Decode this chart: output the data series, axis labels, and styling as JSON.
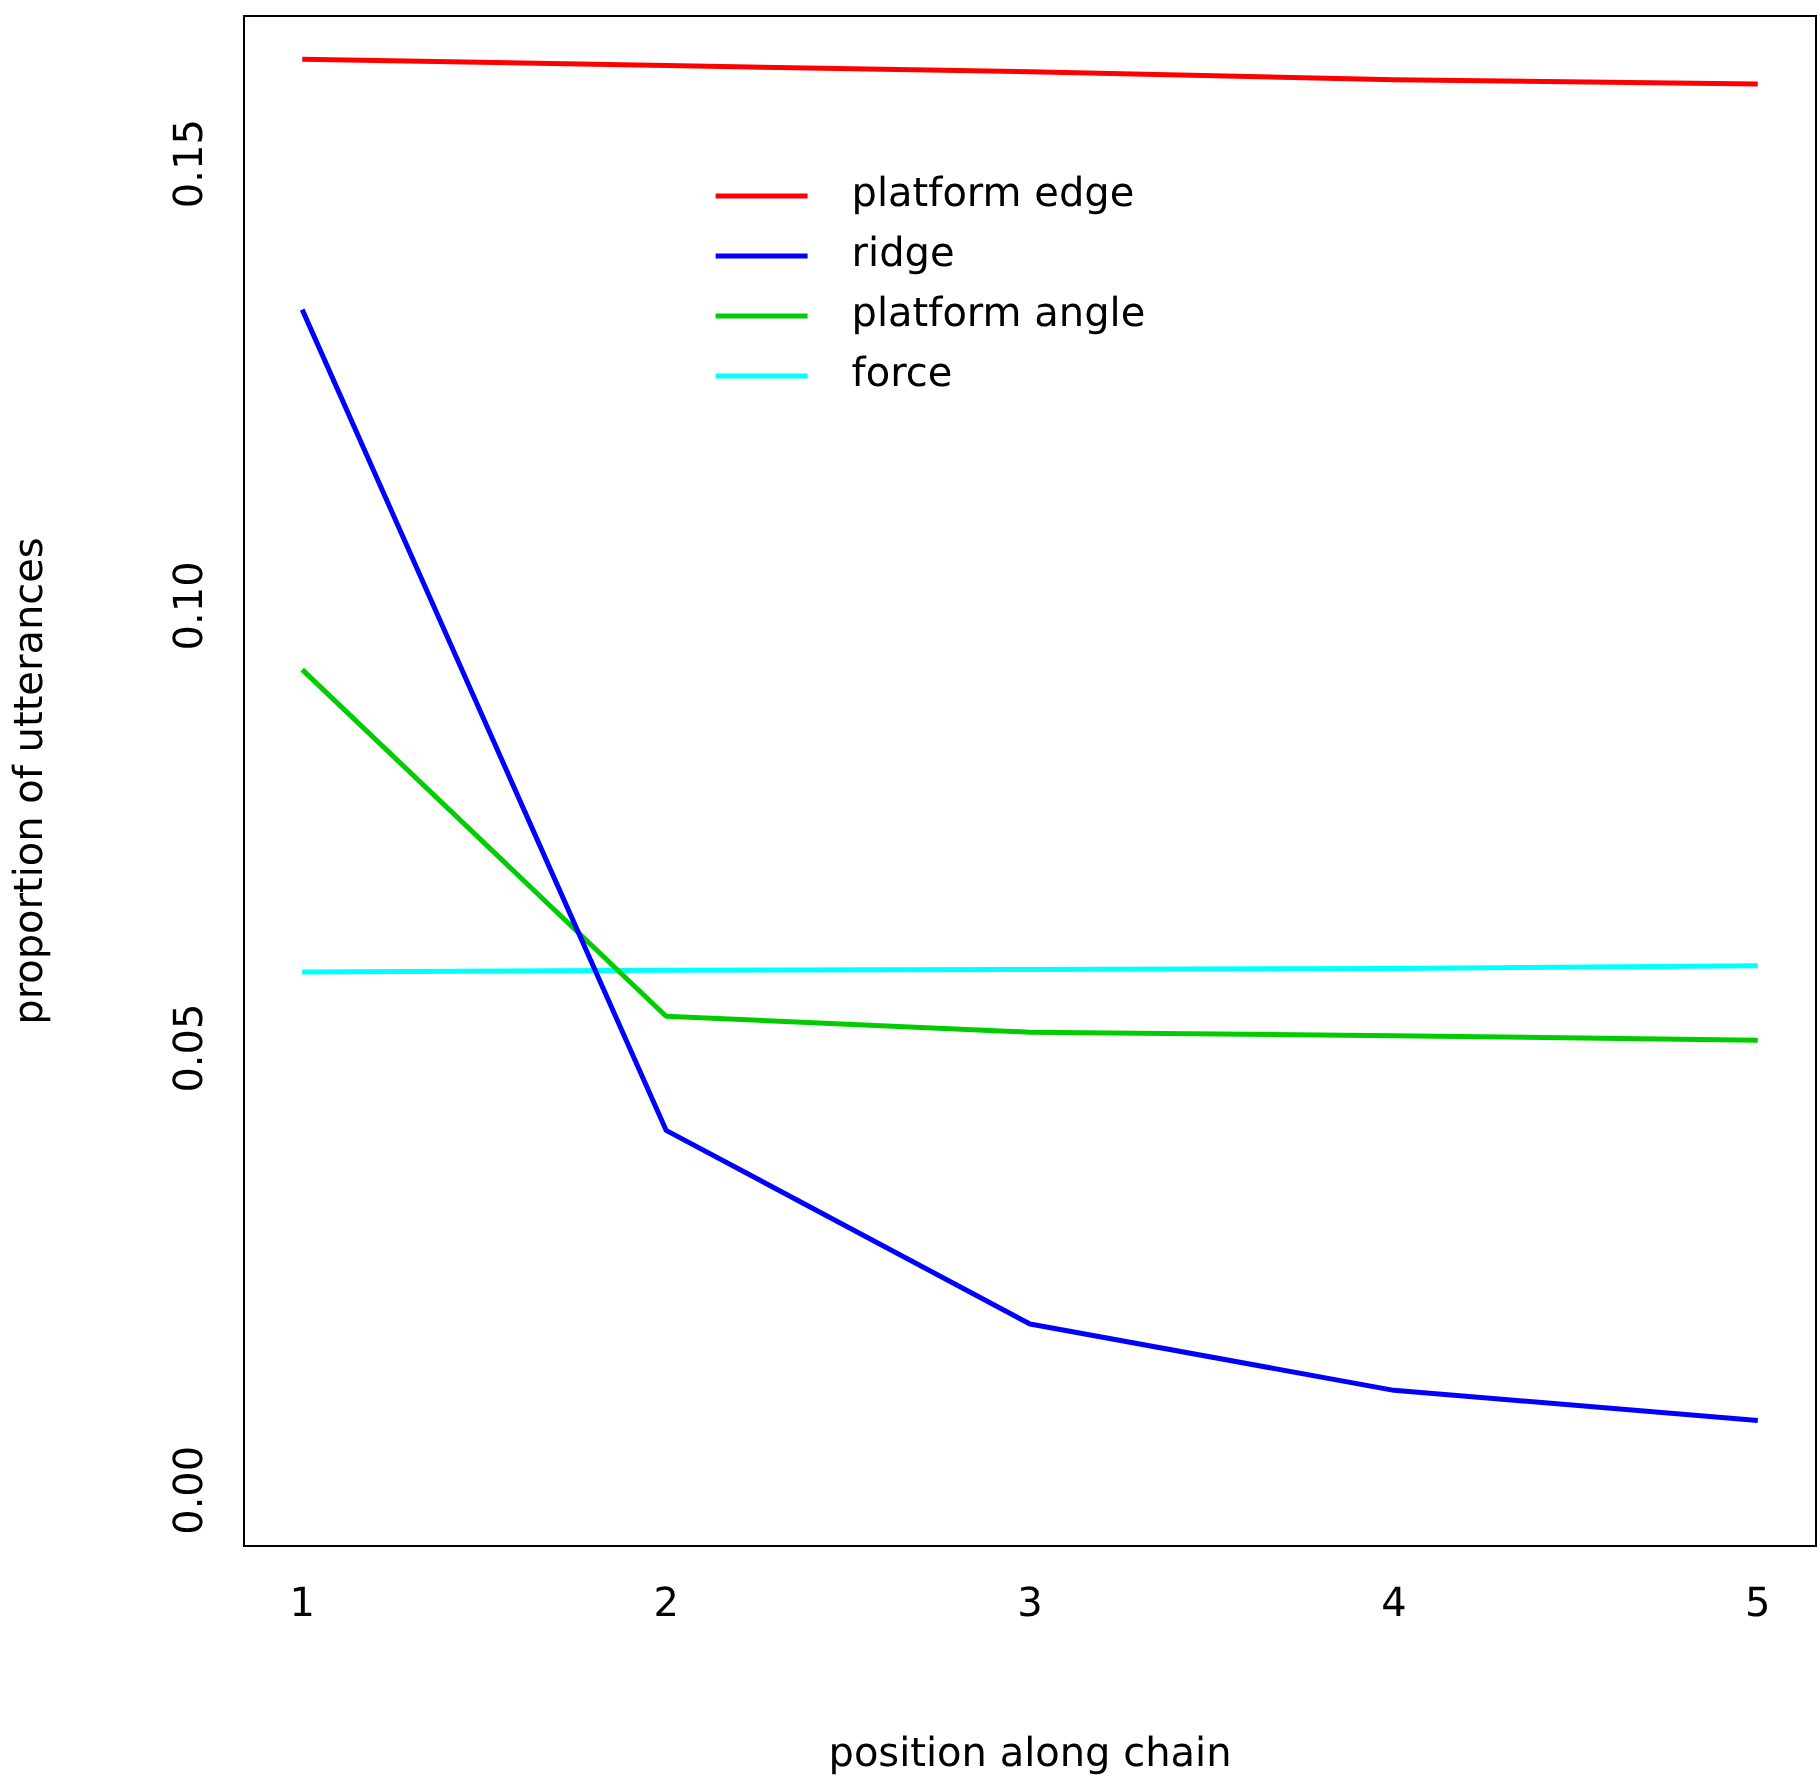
{
  "chart_data": {
    "type": "line",
    "xlabel": "position along chain",
    "ylabel": "proportion of utterances",
    "x": [
      1,
      2,
      3,
      4,
      5
    ],
    "xlim": [
      0.84,
      5.16
    ],
    "xticks": [
      1,
      2,
      3,
      4,
      5
    ],
    "ylim": [
      -0.0063,
      0.1667
    ],
    "yticks": [
      {
        "value": 0,
        "label": "0.00"
      },
      {
        "value": 0.05,
        "label": "0.05"
      },
      {
        "value": 0.1,
        "label": "0.10"
      },
      {
        "value": 0.15,
        "label": "0.15"
      }
    ],
    "grid": false,
    "legend": "top",
    "marker": "none",
    "line_style": "solid",
    "series": [
      {
        "name": "platform edge",
        "color": "#ff0000",
        "values": [
          0.1618,
          0.1611,
          0.1604,
          0.1595,
          0.159
        ]
      },
      {
        "name": "ridge",
        "color": "#0000ff",
        "values": [
          0.1335,
          0.0407,
          0.0188,
          0.0113,
          0.0079
        ]
      },
      {
        "name": "platform angle",
        "color": "#00cd00",
        "values": [
          0.0928,
          0.0536,
          0.0518,
          0.0514,
          0.0509
        ]
      },
      {
        "name": "force",
        "color": "#00ffff",
        "values": [
          0.0586,
          0.0588,
          0.0589,
          0.059,
          0.0593
        ]
      }
    ]
  }
}
